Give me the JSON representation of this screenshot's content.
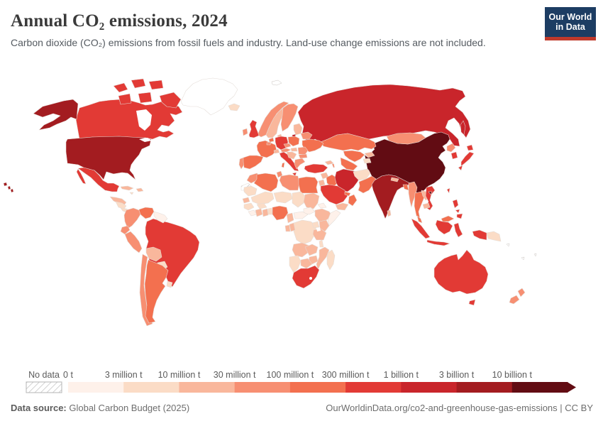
{
  "header": {
    "title": "Annual CO₂ emissions, 2024",
    "subtitle": "Carbon dioxide (CO₂) emissions from fossil fuels and industry. Land-use change emissions are not included.",
    "logo": {
      "line1": "Our World",
      "line2": "in Data",
      "bg_color": "#1d3d63",
      "accent_color": "#c0392b"
    }
  },
  "footer": {
    "source_label": "Data source:",
    "source_text": " Global Carbon Budget (2025)",
    "right_text": "OurWorldinData.org/co2-and-greenhouse-gas-emissions | CC BY"
  },
  "chart_data": {
    "type": "choropleth_map",
    "title": "Annual CO₂ emissions, 2024",
    "unit": "tonnes of CO₂ per year",
    "scale_type": "log-binned",
    "no_data_label": "No data",
    "bins": [
      "0 t",
      "3 million t",
      "10 million t",
      "30 million t",
      "100 million t",
      "300 million t",
      "1 billion t",
      "3 billion t",
      "10 billion t"
    ],
    "bin_colors": [
      "#fef1ea",
      "#fbdcc6",
      "#f9b79c",
      "#f78f72",
      "#f3704f",
      "#e23a35",
      "#c9252b",
      "#a31c20",
      "#620c13"
    ],
    "bin_meaning": "value 1-9 = fill bucket (upper bounds 3M,10M,30M,100M,300M,1B,3B,10B,>10B tonnes); 0 = no data (hatched)",
    "countries": {
      "china": 9,
      "united-states": 8,
      "hawaii": 8,
      "india": 8,
      "russia": 7,
      "sakhalin": 7,
      "kaliningrad": 7,
      "iran": 7,
      "canada": 6,
      "canada-arctic": 6,
      "mexico": 6,
      "brazil": 6,
      "united-kingdom": 6,
      "germany": 6,
      "italy": 6,
      "sicily": 6,
      "turkey": 6,
      "saudi-arabia": 6,
      "south-africa": 6,
      "australia": 6,
      "tasmania": 6,
      "indonesia-sumatra": 6,
      "indonesia-java": 6,
      "indonesia-borneo": 6,
      "indonesia-sulawesi": 6,
      "indonesia-papua": 6,
      "japan-hokkaido": 6,
      "japan-honshu": 6,
      "japan-kyushu": 6,
      "south-korea": 6,
      "vietnam": 6,
      "philippines-luzon": 6,
      "philippines-visayas": 6,
      "philippines-mindanao": 6,
      "taiwan": 6,
      "hainan": 9,
      "spain": 5,
      "france": 5,
      "netherlands": 5,
      "poland": 5,
      "ukraine": 5,
      "kazakhstan": 5,
      "uzbekistan": 5,
      "turkmenistan": 5,
      "iraq": 5,
      "egypt": 5,
      "algeria": 5,
      "nigeria": 5,
      "pakistan": 5,
      "thailand": 5,
      "bangladesh": 5,
      "malaysia-peninsula": 5,
      "malaysia-borneo": 5,
      "venezuela": 5,
      "argentina": 5,
      "oman": 5,
      "gulf-states": 5,
      "sardinia": 5,
      "morocco": 4,
      "tunisia": 4,
      "libya": 4,
      "norway": 4,
      "finland": 4,
      "ireland": 4,
      "portugal": 4,
      "austria": 4,
      "czechia": 4,
      "romania": 4,
      "bulgaria": 4,
      "greece": 4,
      "belarus": 4,
      "belgium": 4,
      "myanmar": 4,
      "mongolia": 4,
      "north-korea": 4,
      "new-zealand-north": 4,
      "new-zealand-south": 4,
      "colombia": 4,
      "ecuador": 4,
      "peru": 4,
      "chile": 4,
      "azerbaijan": 4,
      "cuba": 3,
      "sweden": 3,
      "denmark": 3,
      "baltic-states": 3,
      "hungary": 3,
      "balkans": 3,
      "switzerland": 3,
      "georgia": 3,
      "syria": 3,
      "israel-jordan": 3,
      "yemen": 3,
      "nepal": 3,
      "sri-lanka": 3,
      "cambodia": 3,
      "laos": 3,
      "kyrgyzstan": 3,
      "sudan": 3,
      "ethiopia": 3,
      "kenya": 3,
      "tanzania": 3,
      "senegal": 3,
      "cote-divoire": 3,
      "ghana": 3,
      "cameroon": 3,
      "congo": 3,
      "gabon": 3,
      "angola": 3,
      "zambia": 3,
      "zimbabwe": 3,
      "botswana": 3,
      "mozambique": 3,
      "guatemala": 3,
      "hispaniola": 3,
      "bolivia": 3,
      "iceland": 2,
      "afghanistan": 2,
      "tajikistan": 2,
      "papua-new-guinea": 2,
      "dr-congo": 2,
      "namibia": 2,
      "madagascar": 2,
      "malawi": 2,
      "mauritania": 2,
      "mali": 2,
      "niger": 2,
      "chad": 2,
      "burkina-faso": 2,
      "benin-togo": 2,
      "guinea": 2,
      "uganda": 2,
      "paraguay": 2,
      "uruguay": 2,
      "jamaica": 2,
      "costa-rica-panama": 2,
      "honduras-nicaragua": 2,
      "greenland": 1,
      "somalia": 1,
      "eritrea": 1,
      "south-sudan": 1,
      "central-african-republic": 1,
      "sierra-leone-liberia": 1,
      "guyana-suriname": 1,
      "western-sahara": 0
    }
  }
}
